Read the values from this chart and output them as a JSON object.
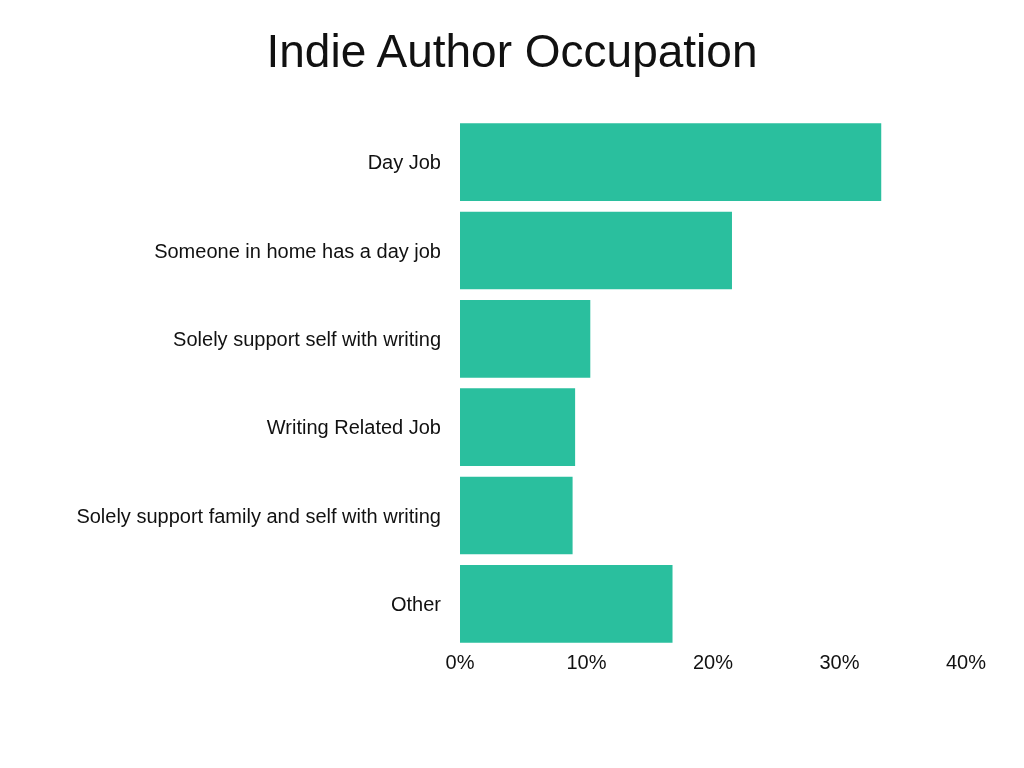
{
  "chart_data": {
    "type": "bar",
    "title": "Indie Author Occupation",
    "orientation": "horizontal",
    "categories": [
      "Day Job",
      "Someone in home has a day job",
      "Solely support self with writing",
      "Writing Related Job",
      "Solely support family and self with writing",
      "Other"
    ],
    "values": [
      33.3,
      21.5,
      10.3,
      9.1,
      8.9,
      16.8
    ],
    "color": "#2abf9e",
    "xlim": [
      0,
      40
    ],
    "xticks": [
      {
        "value": 0,
        "label": "0%"
      },
      {
        "value": 10,
        "label": "10%"
      },
      {
        "value": 20,
        "label": "20%"
      },
      {
        "value": 30,
        "label": "30%"
      },
      {
        "value": 40,
        "label": "40%"
      }
    ],
    "legend": false
  }
}
